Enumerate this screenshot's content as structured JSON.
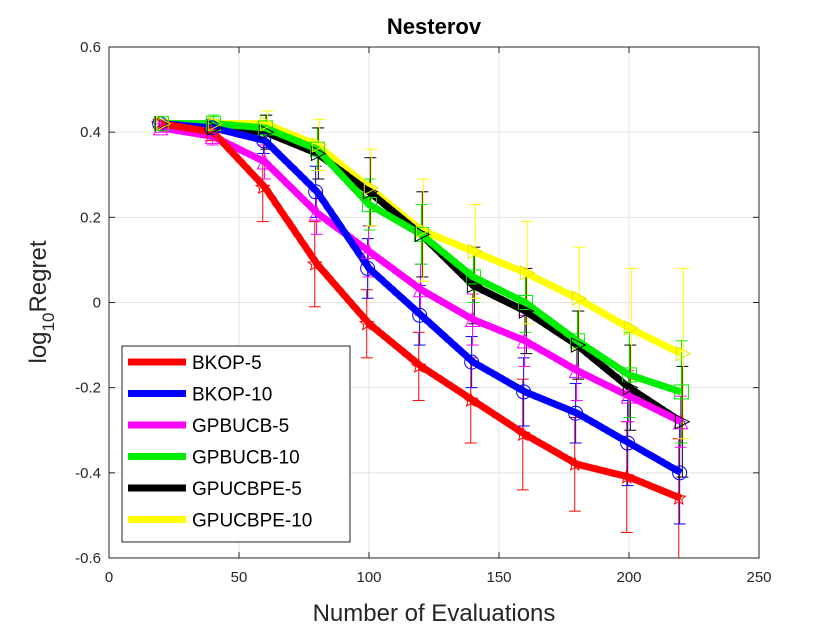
{
  "chart_data": {
    "type": "line",
    "title": "Nesterov",
    "xlabel": "Number of Evaluations",
    "ylabel_main": "log",
    "ylabel_sub": "10",
    "ylabel_tail": "Regret",
    "xlim": [
      0,
      250
    ],
    "ylim": [
      -0.6,
      0.6
    ],
    "xticks": [
      0,
      50,
      100,
      150,
      200,
      250
    ],
    "yticks": [
      -0.6,
      -0.4,
      -0.2,
      0,
      0.2,
      0.4,
      0.6
    ],
    "xtick_labels": [
      "0",
      "50",
      "100",
      "150",
      "200",
      "250"
    ],
    "ytick_labels": [
      "-0.6",
      "-0.4",
      "-0.2",
      "0",
      "0.2",
      "0.4",
      "0.6"
    ],
    "grid": true,
    "legend_position": "bottom-left",
    "x": [
      20,
      40,
      60,
      80,
      100,
      120,
      140,
      160,
      180,
      200,
      220
    ],
    "series": [
      {
        "name": "BKOP-5",
        "color": "#ff0000",
        "marker": "star",
        "values": [
          0.42,
          0.4,
          0.27,
          0.09,
          -0.05,
          -0.15,
          -0.23,
          -0.31,
          -0.38,
          -0.41,
          -0.46
        ],
        "errors": [
          0.01,
          0.02,
          0.08,
          0.1,
          0.08,
          0.08,
          0.1,
          0.13,
          0.11,
          0.13,
          0.14
        ]
      },
      {
        "name": "BKOP-10",
        "color": "#0000ff",
        "marker": "circle",
        "values": [
          0.42,
          0.41,
          0.38,
          0.26,
          0.08,
          -0.03,
          -0.14,
          -0.21,
          -0.26,
          -0.33,
          -0.4
        ],
        "errors": [
          0.01,
          0.02,
          0.03,
          0.06,
          0.07,
          0.07,
          0.06,
          0.08,
          0.07,
          0.1,
          0.12
        ]
      },
      {
        "name": "GPBUCB-5",
        "color": "#ff00ff",
        "marker": "triangle",
        "values": [
          0.41,
          0.39,
          0.33,
          0.21,
          0.12,
          0.03,
          -0.04,
          -0.09,
          -0.16,
          -0.22,
          -0.28
        ],
        "errors": [
          0.01,
          0.02,
          0.04,
          0.05,
          0.06,
          0.06,
          0.06,
          0.06,
          0.07,
          0.06,
          0.06
        ]
      },
      {
        "name": "GPBUCB-10",
        "color": "#00ee00",
        "marker": "square",
        "values": [
          0.42,
          0.42,
          0.41,
          0.36,
          0.23,
          0.16,
          0.06,
          0.0,
          -0.09,
          -0.17,
          -0.21
        ],
        "errors": [
          0.01,
          0.02,
          0.03,
          0.05,
          0.06,
          0.07,
          0.06,
          0.07,
          0.07,
          0.1,
          0.12
        ]
      },
      {
        "name": "GPUCBPE-5",
        "color": "#000000",
        "marker": "tri-right",
        "values": [
          0.42,
          0.41,
          0.4,
          0.35,
          0.26,
          0.16,
          0.04,
          -0.02,
          -0.1,
          -0.2,
          -0.28
        ],
        "errors": [
          0.01,
          0.02,
          0.04,
          0.06,
          0.08,
          0.1,
          0.09,
          0.1,
          0.08,
          0.1,
          0.13
        ]
      },
      {
        "name": "GPUCBPE-10",
        "color": "#ffff00",
        "marker": "tri-right",
        "values": [
          0.42,
          0.42,
          0.42,
          0.37,
          0.27,
          0.17,
          0.12,
          0.07,
          0.01,
          -0.06,
          -0.12
        ],
        "errors": [
          0.01,
          0.01,
          0.03,
          0.06,
          0.09,
          0.12,
          0.11,
          0.12,
          0.12,
          0.14,
          0.2
        ]
      }
    ]
  }
}
